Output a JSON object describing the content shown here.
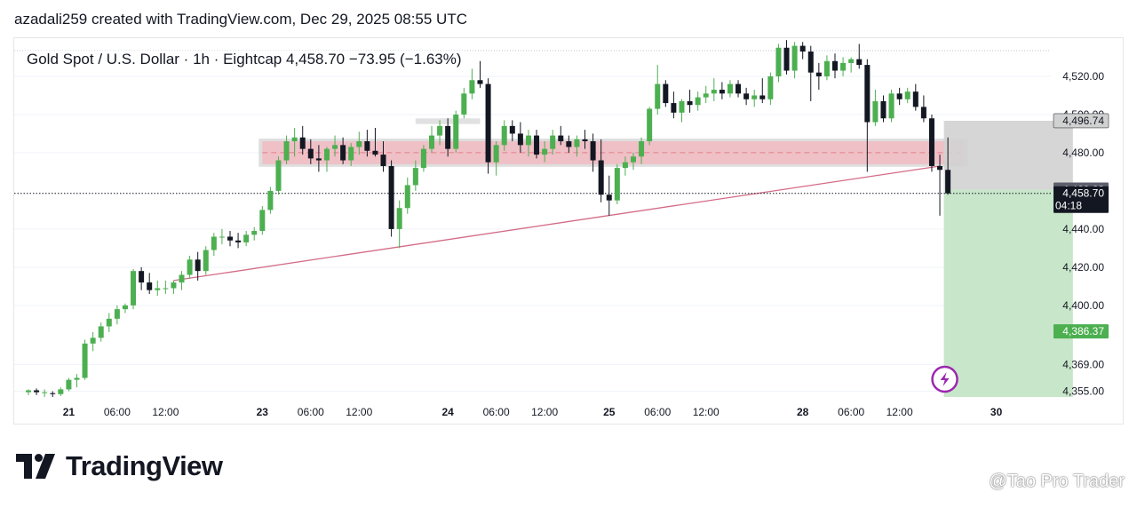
{
  "credit": "azadali259 created with TradingView.com, Dec 29, 2025 08:55 UTC",
  "symbol_line": "Gold Spot / U.S. Dollar · 1h · Eightcap  4,458.70  −73.95 (−1.63%)",
  "brand": "TradingView",
  "watermark": "@Tao Pro Trader",
  "watermark_icon": "chat-bubble-icon",
  "colors": {
    "up": "#4caf50",
    "down": "#131722",
    "grid": "#f0f3fa",
    "trendline": "#d46a85",
    "resistance_zone": "#f4b6bd",
    "target_zone": "#c8e6c9",
    "stop_zone": "#d1d1d1",
    "price_label": "#131722",
    "target_label": "#4caf50",
    "alert_icon": "#9c27b0"
  },
  "chart_data": {
    "type": "candlestick",
    "instrument": "Gold Spot / U.S. Dollar",
    "interval": "1h",
    "broker": "Eightcap",
    "last_price": 4458.7,
    "change": -73.95,
    "change_pct": -1.63,
    "ylim": [
      4352,
      4540
    ],
    "y_ticks": [
      4520.0,
      4500.0,
      4480.0,
      4440.0,
      4420.0,
      4400.0,
      4369.0,
      4355.0
    ],
    "y_tick_labels": [
      "4,520.00",
      "4,500.00",
      "4,480.00",
      "4,440.00",
      "4,420.00",
      "4,400.00",
      "4,369.00",
      "4,355.00"
    ],
    "x_ticks": [
      {
        "i": 5,
        "label": "21"
      },
      {
        "i": 11,
        "label": "06:00"
      },
      {
        "i": 17,
        "label": "12:00"
      },
      {
        "i": 29,
        "label": "23"
      },
      {
        "i": 35,
        "label": "06:00"
      },
      {
        "i": 41,
        "label": "12:00"
      },
      {
        "i": 52,
        "label": "24"
      },
      {
        "i": 58,
        "label": "06:00"
      },
      {
        "i": 64,
        "label": "12:00"
      },
      {
        "i": 72,
        "label": "25"
      },
      {
        "i": 78,
        "label": "06:00"
      },
      {
        "i": 84,
        "label": "12:00"
      },
      {
        "i": 96,
        "label": "28"
      },
      {
        "i": 102,
        "label": "06:00"
      },
      {
        "i": 108,
        "label": "12:00"
      },
      {
        "i": 120,
        "label": "30"
      }
    ],
    "price_labels": [
      {
        "value": 4496.74,
        "label": "4,496.74",
        "style": "stop"
      },
      {
        "value": 4460.63,
        "label": "4,460.63",
        "style": "dark"
      },
      {
        "value": 4458.7,
        "label": "4,458.70",
        "sub": "04:18",
        "style": "current"
      },
      {
        "value": 4386.37,
        "label": "4,386.37",
        "style": "target"
      }
    ],
    "candles": [
      {
        "o": 4354.5,
        "h": 4356,
        "l": 4353,
        "c": 4355.5
      },
      {
        "o": 4355.5,
        "h": 4356.5,
        "l": 4353,
        "c": 4354.5
      },
      {
        "o": 4354.5,
        "h": 4356,
        "l": 4352,
        "c": 4354.5
      },
      {
        "o": 4354,
        "h": 4355,
        "l": 4352,
        "c": 4353.5
      },
      {
        "o": 4353.5,
        "h": 4357,
        "l": 4352.5,
        "c": 4356
      },
      {
        "o": 4356,
        "h": 4362,
        "l": 4355,
        "c": 4361
      },
      {
        "o": 4361,
        "h": 4364,
        "l": 4357,
        "c": 4362
      },
      {
        "o": 4362,
        "h": 4382,
        "l": 4361,
        "c": 4380
      },
      {
        "o": 4380,
        "h": 4386,
        "l": 4376,
        "c": 4383
      },
      {
        "o": 4383,
        "h": 4391,
        "l": 4381,
        "c": 4389
      },
      {
        "o": 4389,
        "h": 4396,
        "l": 4386,
        "c": 4393
      },
      {
        "o": 4393,
        "h": 4400,
        "l": 4390,
        "c": 4398
      },
      {
        "o": 4398,
        "h": 4401,
        "l": 4396,
        "c": 4400
      },
      {
        "o": 4400,
        "h": 4419,
        "l": 4398,
        "c": 4418
      },
      {
        "o": 4418,
        "h": 4420,
        "l": 4408,
        "c": 4412
      },
      {
        "o": 4412,
        "h": 4417,
        "l": 4406,
        "c": 4408
      },
      {
        "o": 4408,
        "h": 4413,
        "l": 4405,
        "c": 4409
      },
      {
        "o": 4409,
        "h": 4413,
        "l": 4406,
        "c": 4409
      },
      {
        "o": 4409,
        "h": 4413,
        "l": 4406,
        "c": 4412
      },
      {
        "o": 4412,
        "h": 4418,
        "l": 4408,
        "c": 4416
      },
      {
        "o": 4416,
        "h": 4426,
        "l": 4414,
        "c": 4424
      },
      {
        "o": 4424,
        "h": 4428,
        "l": 4413,
        "c": 4418
      },
      {
        "o": 4418,
        "h": 4431,
        "l": 4416,
        "c": 4429
      },
      {
        "o": 4429,
        "h": 4438,
        "l": 4426,
        "c": 4436
      },
      {
        "o": 4436,
        "h": 4440,
        "l": 4432,
        "c": 4436
      },
      {
        "o": 4436,
        "h": 4439,
        "l": 4431,
        "c": 4434
      },
      {
        "o": 4434,
        "h": 4438,
        "l": 4430,
        "c": 4433
      },
      {
        "o": 4433,
        "h": 4439,
        "l": 4431,
        "c": 4437
      },
      {
        "o": 4437,
        "h": 4441,
        "l": 4434,
        "c": 4439
      },
      {
        "o": 4439,
        "h": 4452,
        "l": 4437,
        "c": 4450
      },
      {
        "o": 4450,
        "h": 4462,
        "l": 4448,
        "c": 4460
      },
      {
        "o": 4460,
        "h": 4478,
        "l": 4458,
        "c": 4476
      },
      {
        "o": 4476,
        "h": 4489,
        "l": 4474,
        "c": 4486
      },
      {
        "o": 4486,
        "h": 4493,
        "l": 4478,
        "c": 4488
      },
      {
        "o": 4488,
        "h": 4494,
        "l": 4479,
        "c": 4482
      },
      {
        "o": 4482,
        "h": 4487,
        "l": 4474,
        "c": 4477
      },
      {
        "o": 4477,
        "h": 4484,
        "l": 4470,
        "c": 4476
      },
      {
        "o": 4476,
        "h": 4483,
        "l": 4470,
        "c": 4482
      },
      {
        "o": 4482,
        "h": 4489,
        "l": 4478,
        "c": 4484
      },
      {
        "o": 4484,
        "h": 4488,
        "l": 4474,
        "c": 4476
      },
      {
        "o": 4476,
        "h": 4485,
        "l": 4473,
        "c": 4483
      },
      {
        "o": 4483,
        "h": 4491,
        "l": 4479,
        "c": 4486
      },
      {
        "o": 4486,
        "h": 4492,
        "l": 4478,
        "c": 4481
      },
      {
        "o": 4481,
        "h": 4493,
        "l": 4478,
        "c": 4479
      },
      {
        "o": 4479,
        "h": 4486,
        "l": 4470,
        "c": 4473
      },
      {
        "o": 4473,
        "h": 4476,
        "l": 4436,
        "c": 4440
      },
      {
        "o": 4440,
        "h": 4455,
        "l": 4430,
        "c": 4451
      },
      {
        "o": 4451,
        "h": 4467,
        "l": 4448,
        "c": 4463
      },
      {
        "o": 4463,
        "h": 4476,
        "l": 4460,
        "c": 4472
      },
      {
        "o": 4472,
        "h": 4484,
        "l": 4470,
        "c": 4482
      },
      {
        "o": 4482,
        "h": 4494,
        "l": 4480,
        "c": 4489
      },
      {
        "o": 4489,
        "h": 4497,
        "l": 4484,
        "c": 4494
      },
      {
        "o": 4494,
        "h": 4498,
        "l": 4478,
        "c": 4482
      },
      {
        "o": 4482,
        "h": 4502,
        "l": 4480,
        "c": 4500
      },
      {
        "o": 4500,
        "h": 4514,
        "l": 4498,
        "c": 4511
      },
      {
        "o": 4511,
        "h": 4524,
        "l": 4508,
        "c": 4518
      },
      {
        "o": 4518,
        "h": 4528,
        "l": 4514,
        "c": 4516
      },
      {
        "o": 4516,
        "h": 4519,
        "l": 4469,
        "c": 4475
      },
      {
        "o": 4475,
        "h": 4486,
        "l": 4468,
        "c": 4484
      },
      {
        "o": 4484,
        "h": 4497,
        "l": 4481,
        "c": 4494
      },
      {
        "o": 4494,
        "h": 4497,
        "l": 4486,
        "c": 4490
      },
      {
        "o": 4490,
        "h": 4496,
        "l": 4480,
        "c": 4484
      },
      {
        "o": 4484,
        "h": 4492,
        "l": 4478,
        "c": 4489
      },
      {
        "o": 4489,
        "h": 4492,
        "l": 4477,
        "c": 4479
      },
      {
        "o": 4479,
        "h": 4486,
        "l": 4475,
        "c": 4482
      },
      {
        "o": 4482,
        "h": 4492,
        "l": 4479,
        "c": 4489
      },
      {
        "o": 4489,
        "h": 4494,
        "l": 4484,
        "c": 4486
      },
      {
        "o": 4486,
        "h": 4489,
        "l": 4480,
        "c": 4483
      },
      {
        "o": 4483,
        "h": 4489,
        "l": 4478,
        "c": 4487
      },
      {
        "o": 4487,
        "h": 4492,
        "l": 4482,
        "c": 4486
      },
      {
        "o": 4486,
        "h": 4490,
        "l": 4470,
        "c": 4476
      },
      {
        "o": 4476,
        "h": 4487,
        "l": 4454,
        "c": 4458
      },
      {
        "o": 4458,
        "h": 4468,
        "l": 4447,
        "c": 4455
      },
      {
        "o": 4455,
        "h": 4474,
        "l": 4453,
        "c": 4472
      },
      {
        "o": 4472,
        "h": 4478,
        "l": 4468,
        "c": 4475
      },
      {
        "o": 4475,
        "h": 4480,
        "l": 4471,
        "c": 4478
      },
      {
        "o": 4478,
        "h": 4488,
        "l": 4474,
        "c": 4486
      },
      {
        "o": 4486,
        "h": 4504,
        "l": 4484,
        "c": 4503
      },
      {
        "o": 4503,
        "h": 4526,
        "l": 4500,
        "c": 4516
      },
      {
        "o": 4516,
        "h": 4518,
        "l": 4504,
        "c": 4506
      },
      {
        "o": 4506,
        "h": 4512,
        "l": 4498,
        "c": 4501
      },
      {
        "o": 4501,
        "h": 4508,
        "l": 4496,
        "c": 4507
      },
      {
        "o": 4507,
        "h": 4513,
        "l": 4501,
        "c": 4505
      },
      {
        "o": 4505,
        "h": 4512,
        "l": 4502,
        "c": 4509
      },
      {
        "o": 4509,
        "h": 4515,
        "l": 4506,
        "c": 4511
      },
      {
        "o": 4511,
        "h": 4519,
        "l": 4507,
        "c": 4513
      },
      {
        "o": 4513,
        "h": 4517,
        "l": 4508,
        "c": 4511
      },
      {
        "o": 4511,
        "h": 4518,
        "l": 4509,
        "c": 4516
      },
      {
        "o": 4516,
        "h": 4518,
        "l": 4509,
        "c": 4511
      },
      {
        "o": 4511,
        "h": 4514,
        "l": 4505,
        "c": 4508
      },
      {
        "o": 4508,
        "h": 4513,
        "l": 4504,
        "c": 4510
      },
      {
        "o": 4510,
        "h": 4519,
        "l": 4506,
        "c": 4508
      },
      {
        "o": 4508,
        "h": 4522,
        "l": 4505,
        "c": 4520
      },
      {
        "o": 4520,
        "h": 4537,
        "l": 4517,
        "c": 4535
      },
      {
        "o": 4535,
        "h": 4539,
        "l": 4521,
        "c": 4523
      },
      {
        "o": 4523,
        "h": 4538,
        "l": 4519,
        "c": 4536
      },
      {
        "o": 4536,
        "h": 4538,
        "l": 4529,
        "c": 4533
      },
      {
        "o": 4533,
        "h": 4536,
        "l": 4507,
        "c": 4522
      },
      {
        "o": 4522,
        "h": 4527,
        "l": 4513,
        "c": 4520
      },
      {
        "o": 4520,
        "h": 4531,
        "l": 4518,
        "c": 4528
      },
      {
        "o": 4528,
        "h": 4532,
        "l": 4519,
        "c": 4523
      },
      {
        "o": 4523,
        "h": 4530,
        "l": 4520,
        "c": 4527
      },
      {
        "o": 4527,
        "h": 4530,
        "l": 4522,
        "c": 4529
      },
      {
        "o": 4529,
        "h": 4537,
        "l": 4524,
        "c": 4526
      },
      {
        "o": 4526,
        "h": 4529,
        "l": 4470,
        "c": 4496
      },
      {
        "o": 4496,
        "h": 4513,
        "l": 4494,
        "c": 4507
      },
      {
        "o": 4507,
        "h": 4510,
        "l": 4496,
        "c": 4498
      },
      {
        "o": 4498,
        "h": 4513,
        "l": 4496,
        "c": 4511
      },
      {
        "o": 4511,
        "h": 4514,
        "l": 4505,
        "c": 4508
      },
      {
        "o": 4508,
        "h": 4514,
        "l": 4506,
        "c": 4512
      },
      {
        "o": 4512,
        "h": 4516,
        "l": 4502,
        "c": 4504
      },
      {
        "o": 4504,
        "h": 4510,
        "l": 4496,
        "c": 4498
      },
      {
        "o": 4498,
        "h": 4500,
        "l": 4470,
        "c": 4473
      },
      {
        "o": 4473,
        "h": 4479,
        "l": 4447,
        "c": 4471
      },
      {
        "o": 4471,
        "h": 4488,
        "l": 4458,
        "c": 4458.7
      }
    ],
    "annotations": [
      {
        "type": "trendline",
        "x1": 18,
        "y1": 4413,
        "x2": 113,
        "y2": 4473
      },
      {
        "type": "zone",
        "style": "resistance",
        "x1": 29,
        "x2": 116,
        "y1": 4474,
        "y2": 4486
      },
      {
        "type": "zone",
        "style": "highlight",
        "x1": 48,
        "x2": 56,
        "y1": 4495,
        "y2": 4498
      },
      {
        "type": "zone",
        "style": "stop",
        "x1": 113.5,
        "x2": 129.5,
        "y1": 4460.63,
        "y2": 4496.74
      },
      {
        "type": "zone",
        "style": "target",
        "x1": 113.5,
        "x2": 129.5,
        "y1": 4352,
        "y2": 4460.63
      },
      {
        "type": "hline",
        "style": "dotted",
        "y": 4458.7
      }
    ]
  }
}
